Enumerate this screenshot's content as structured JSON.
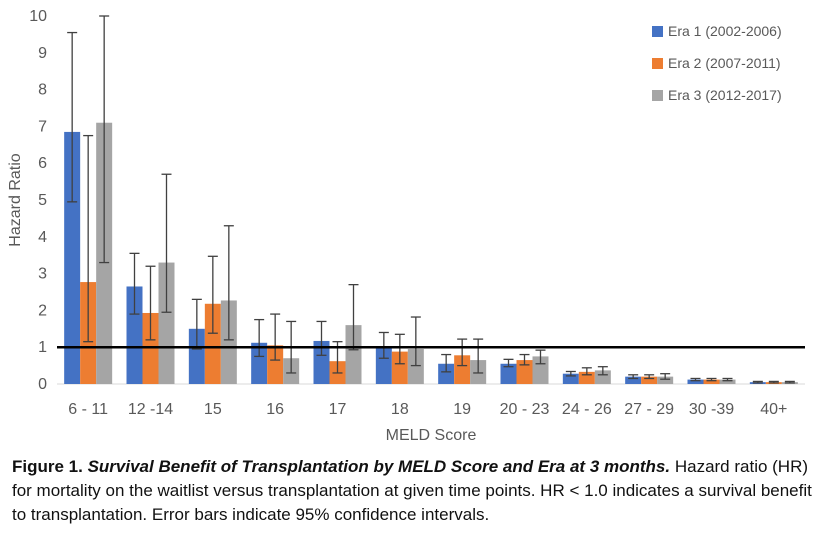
{
  "chart_data": {
    "type": "bar",
    "xlabel": "MELD Score",
    "ylabel": "Hazard Ratio",
    "ylim": [
      0,
      10
    ],
    "yticks": [
      0,
      1,
      2,
      3,
      4,
      5,
      6,
      7,
      8,
      9,
      10
    ],
    "reference_line": 1,
    "error_bars": true,
    "legend_position": "top-right",
    "categories": [
      "6 - 11",
      "12 -14",
      "15",
      "16",
      "17",
      "18",
      "19",
      "20 - 23",
      "24 - 26",
      "27 - 29",
      "30 -39",
      "40+"
    ],
    "series": [
      {
        "name": "Era 1 (2002-2006)",
        "color": "#4472C4",
        "values": [
          6.85,
          2.65,
          1.5,
          1.12,
          1.17,
          0.97,
          0.55,
          0.55,
          0.28,
          0.2,
          0.12,
          0.05
        ],
        "err_low": [
          4.95,
          1.9,
          0.95,
          0.75,
          0.78,
          0.7,
          0.33,
          0.47,
          0.22,
          0.15,
          0.09,
          0.03
        ],
        "err_high": [
          9.55,
          3.55,
          2.3,
          1.75,
          1.7,
          1.4,
          0.8,
          0.67,
          0.34,
          0.25,
          0.15,
          0.07
        ]
      },
      {
        "name": "Era 2 (2007-2011)",
        "color": "#ED7D31",
        "values": [
          2.77,
          1.93,
          2.18,
          1.05,
          0.62,
          0.88,
          0.78,
          0.65,
          0.33,
          0.2,
          0.12,
          0.05
        ],
        "err_low": [
          1.15,
          1.2,
          1.38,
          0.65,
          0.3,
          0.55,
          0.5,
          0.52,
          0.25,
          0.15,
          0.09,
          0.03
        ],
        "err_high": [
          6.75,
          3.2,
          3.47,
          1.9,
          1.15,
          1.35,
          1.22,
          0.8,
          0.44,
          0.25,
          0.15,
          0.07
        ]
      },
      {
        "name": "Era 3 (2012-2017)",
        "color": "#A5A5A5",
        "values": [
          7.1,
          3.3,
          2.27,
          0.7,
          1.6,
          0.95,
          0.65,
          0.75,
          0.37,
          0.2,
          0.12,
          0.05
        ],
        "err_low": [
          3.3,
          1.95,
          1.2,
          0.3,
          0.93,
          0.5,
          0.3,
          0.55,
          0.25,
          0.13,
          0.09,
          0.03
        ],
        "err_high": [
          10.0,
          5.7,
          4.3,
          1.7,
          2.7,
          1.82,
          1.22,
          0.92,
          0.47,
          0.28,
          0.15,
          0.07
        ]
      }
    ]
  },
  "caption": {
    "lead": "Figure 1. ",
    "title": "Survival Benefit of Transplantation  by MELD Score and Era at 3 months.",
    "body": " Hazard ratio (HR) for mortality on the waitlist versus transplantation at given time points. HR < 1.0 indicates a survival benefit to transplantation. Error bars indicate 95% confidence intervals."
  }
}
